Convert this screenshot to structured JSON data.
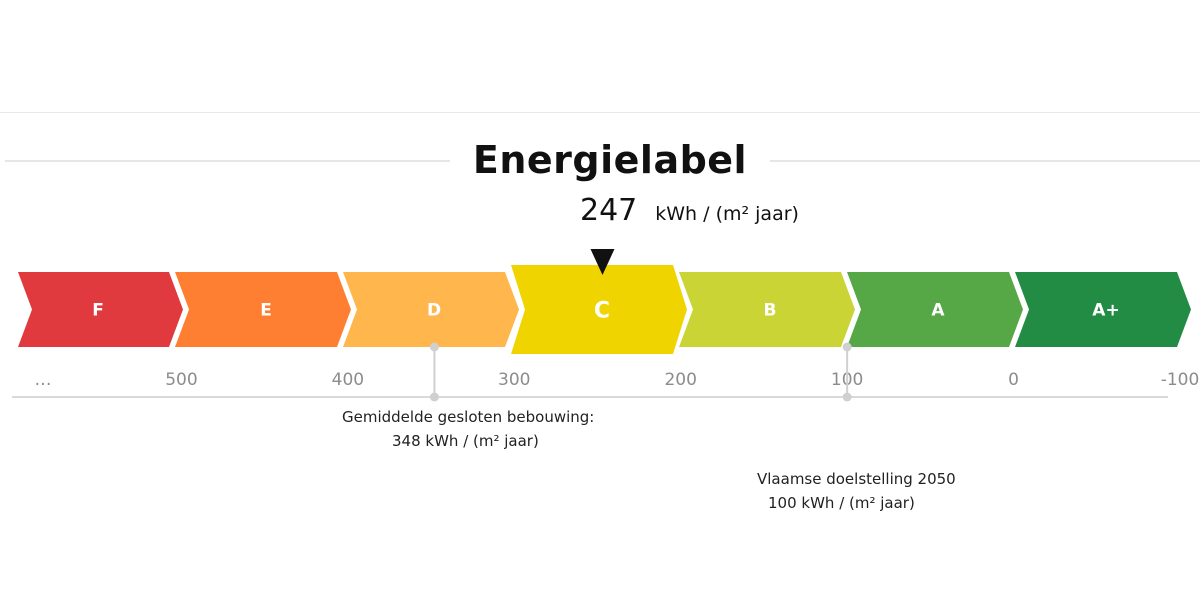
{
  "chart_data": {
    "type": "bar",
    "title": "Energielabel",
    "value": 247,
    "unit": "kWh / (m² jaar)",
    "active_category": "C",
    "categories": [
      {
        "label": "F",
        "min": 500,
        "max": null,
        "color": "#e03a3e"
      },
      {
        "label": "E",
        "min": 400,
        "max": 500,
        "color": "#ff7f32"
      },
      {
        "label": "D",
        "min": 300,
        "max": 400,
        "color": "#ffb64d"
      },
      {
        "label": "C",
        "min": 200,
        "max": 300,
        "color": "#f0d400"
      },
      {
        "label": "B",
        "min": 100,
        "max": 200,
        "color": "#cad535"
      },
      {
        "label": "A",
        "min": 0,
        "max": 100,
        "color": "#56a846"
      },
      {
        "label": "A+",
        "min": -100,
        "max": 0,
        "color": "#238c44"
      }
    ],
    "tick_labels": [
      "…",
      "500",
      "400",
      "300",
      "200",
      "100",
      "0",
      "-100"
    ],
    "references": [
      {
        "value": 348,
        "label": "Gemiddelde gesloten bebouwing:",
        "value_label": "348 kWh / (m² jaar)"
      },
      {
        "value": 100,
        "label": "Vlaamse doelstelling 2050",
        "value_label": "100 kWh / (m² jaar)"
      }
    ]
  }
}
